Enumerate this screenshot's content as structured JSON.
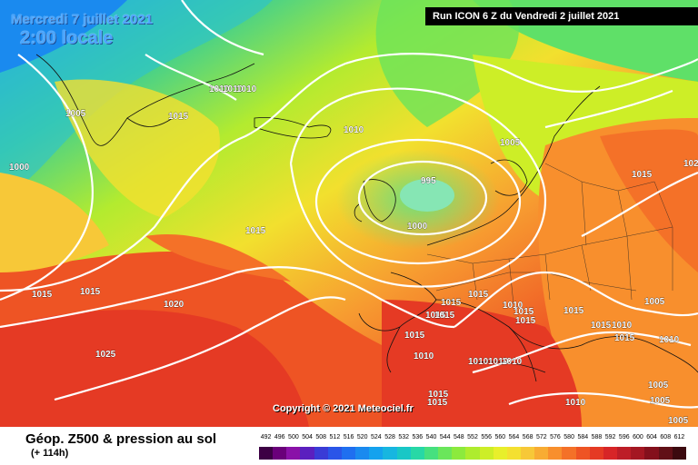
{
  "header": {
    "date": "Mercredi 7 juillet 2021",
    "time": "2:00 locale",
    "run": "Run ICON 6 Z du Vendredi 2 juillet 2021"
  },
  "copyright": "Copyright © 2021 Meteociel.fr",
  "legend": {
    "title": "Géop. Z500 & pression au sol",
    "subtitle": "(+ 114h)",
    "scale_values": [
      "492",
      "496",
      "500",
      "504",
      "508",
      "512",
      "516",
      "520",
      "524",
      "528",
      "532",
      "536",
      "540",
      "544",
      "548",
      "552",
      "556",
      "560",
      "564",
      "568",
      "572",
      "576",
      "580",
      "584",
      "588",
      "592",
      "596",
      "600",
      "604",
      "608",
      "612"
    ],
    "scale_colors": [
      "#3d0044",
      "#6a007a",
      "#8a11a8",
      "#5b1fbf",
      "#3a3bd6",
      "#2a55e8",
      "#1f6ff0",
      "#1a8aef",
      "#14a2ee",
      "#17b6e0",
      "#19c7c6",
      "#27d8a6",
      "#46e07f",
      "#6ae65b",
      "#8cea3d",
      "#aeec2e",
      "#cdee27",
      "#e8ef2b",
      "#f4e030",
      "#f7c838",
      "#f8ac33",
      "#f88f2d",
      "#f47128",
      "#ee5424",
      "#e53a24",
      "#d72527",
      "#bd1d27",
      "#a41722",
      "#84101c",
      "#611017",
      "#3c0a0f"
    ]
  },
  "pressure_labels": [
    {
      "text": "1005",
      "name": "isobar-label"
    },
    {
      "text": "1015",
      "name": "isobar-label"
    },
    {
      "text": "1010",
      "name": "isobar-label"
    },
    {
      "text": "1010",
      "name": "isobar-label"
    },
    {
      "text": "1010",
      "name": "isobar-label"
    },
    {
      "text": "1000",
      "name": "isobar-label"
    },
    {
      "text": "1010",
      "name": "isobar-label"
    },
    {
      "text": "995",
      "name": "isobar-label"
    },
    {
      "text": "1000",
      "name": "isobar-label"
    },
    {
      "text": "1005",
      "name": "isobar-label"
    },
    {
      "text": "1015",
      "name": "isobar-label"
    },
    {
      "text": "102",
      "name": "isobar-label"
    },
    {
      "text": "1015",
      "name": "isobar-label"
    },
    {
      "text": "1015",
      "name": "isobar-label"
    },
    {
      "text": "1015",
      "name": "isobar-label"
    },
    {
      "text": "1020",
      "name": "isobar-label"
    },
    {
      "text": "1025",
      "name": "isobar-label"
    },
    {
      "text": "1015",
      "name": "isobar-label"
    },
    {
      "text": "1015",
      "name": "isobar-label"
    },
    {
      "text": "1010",
      "name": "isobar-label"
    },
    {
      "text": "1015",
      "name": "isobar-label"
    },
    {
      "text": "1015",
      "name": "isobar-label"
    },
    {
      "text": "1015",
      "name": "isobar-label"
    },
    {
      "text": "1005",
      "name": "isobar-label"
    },
    {
      "text": "1015",
      "name": "isobar-label"
    },
    {
      "text": "1015",
      "name": "isobar-label"
    },
    {
      "text": "1015",
      "name": "isobar-label"
    },
    {
      "text": "1010",
      "name": "isobar-label"
    },
    {
      "text": "1010",
      "name": "isobar-label"
    },
    {
      "text": "1015",
      "name": "isobar-label"
    },
    {
      "text": "1010",
      "name": "isobar-label"
    },
    {
      "text": "1010",
      "name": "isobar-label"
    },
    {
      "text": "1010",
      "name": "isobar-label"
    },
    {
      "text": "1010",
      "name": "isobar-label"
    },
    {
      "text": "1015",
      "name": "isobar-label"
    },
    {
      "text": "1010",
      "name": "isobar-label"
    },
    {
      "text": "1005",
      "name": "isobar-label"
    },
    {
      "text": "1005",
      "name": "isobar-label"
    },
    {
      "text": "1005",
      "name": "isobar-label"
    },
    {
      "text": "1015",
      "name": "isobar-label"
    },
    {
      "text": "1015",
      "name": "isobar-label"
    }
  ]
}
